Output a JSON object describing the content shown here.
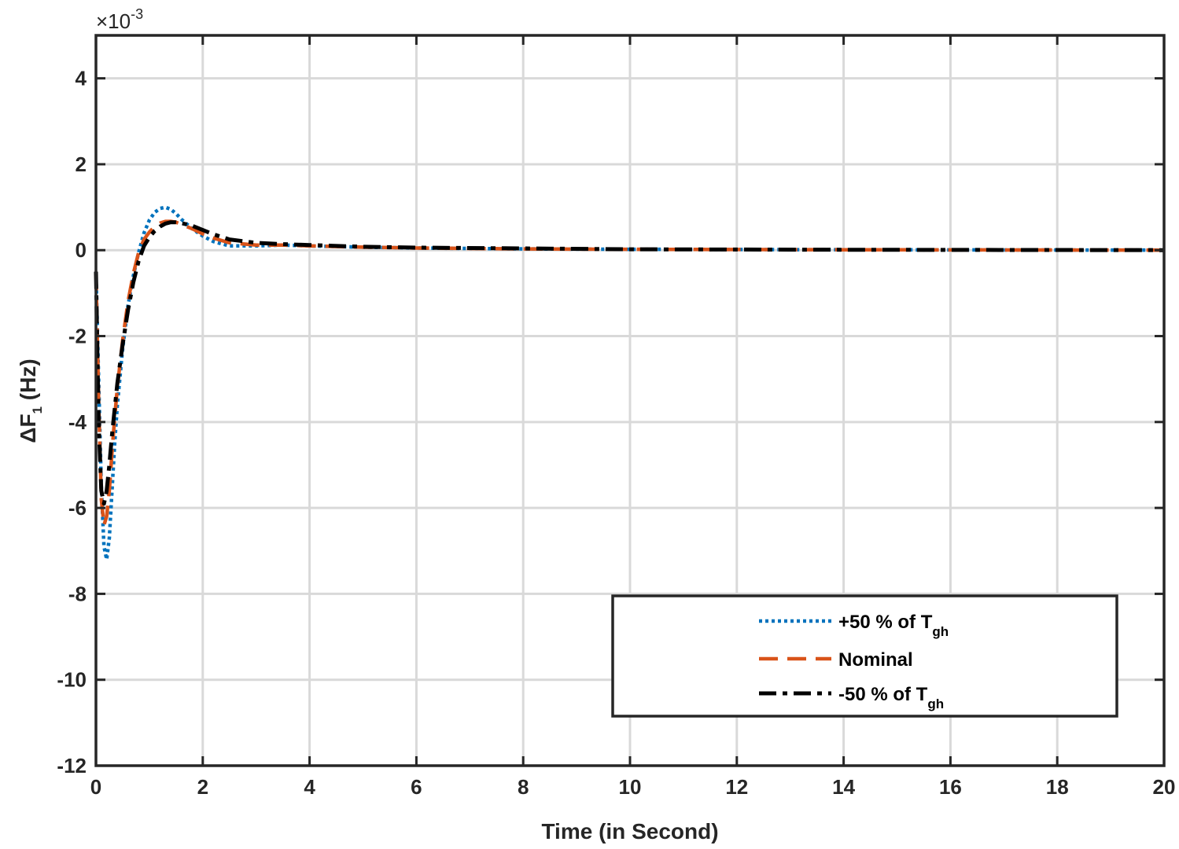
{
  "chart_data": {
    "type": "line",
    "title": "",
    "xlabel": "Time (in Second)",
    "ylabel": {
      "prefix": "ΔF",
      "subscript": "1",
      "suffix": " (Hz)"
    },
    "y_multiplier": {
      "base": "×10",
      "exponent": "-3"
    },
    "xlim": [
      0,
      20
    ],
    "ylim": [
      -12,
      5
    ],
    "x_ticks": [
      0,
      2,
      4,
      6,
      8,
      10,
      12,
      14,
      16,
      18,
      20
    ],
    "x_tick_labels": [
      "0",
      "2",
      "4",
      "6",
      "8",
      "10",
      "12",
      "14",
      "16",
      "18",
      "20"
    ],
    "y_ticks": [
      -12,
      -10,
      -8,
      -6,
      -4,
      -2,
      0,
      2,
      4
    ],
    "y_tick_labels": [
      "-12",
      "-10",
      "-8",
      "-6",
      "-4",
      "-2",
      "0",
      "2",
      "4"
    ],
    "grid": true,
    "legend_position": "bottom-right",
    "series": [
      {
        "name": "+50 % of T",
        "name_subscript": "gh",
        "color": "#0072BD",
        "style": "dotted",
        "x": [
          0,
          0.05,
          0.1,
          0.15,
          0.2,
          0.25,
          0.3,
          0.35,
          0.4,
          0.5,
          0.6,
          0.7,
          0.8,
          0.9,
          1.0,
          1.1,
          1.2,
          1.3,
          1.4,
          1.5,
          1.6,
          1.8,
          2.0,
          2.2,
          2.5,
          3.0,
          3.5,
          4.0,
          5.0,
          6.0,
          8.0,
          10.0,
          14.0,
          20.0
        ],
        "y": [
          -0.5,
          -3.0,
          -5.5,
          -6.9,
          -7.2,
          -6.7,
          -5.6,
          -4.5,
          -3.6,
          -2.3,
          -1.3,
          -0.6,
          -0.05,
          0.4,
          0.7,
          0.88,
          0.97,
          1.0,
          0.95,
          0.85,
          0.72,
          0.5,
          0.33,
          0.2,
          0.1,
          0.1,
          0.12,
          0.1,
          0.07,
          0.05,
          0.03,
          0.02,
          0.01,
          0.0
        ]
      },
      {
        "name": "Nominal",
        "name_subscript": "",
        "color": "#D95319",
        "style": "dashed",
        "x": [
          0,
          0.05,
          0.1,
          0.15,
          0.2,
          0.25,
          0.3,
          0.35,
          0.4,
          0.5,
          0.6,
          0.7,
          0.8,
          0.9,
          1.0,
          1.1,
          1.2,
          1.3,
          1.4,
          1.5,
          1.6,
          1.8,
          2.0,
          2.2,
          2.5,
          3.0,
          3.5,
          4.0,
          5.0,
          6.0,
          8.0,
          10.0,
          14.0,
          20.0
        ],
        "y": [
          -0.5,
          -3.5,
          -5.8,
          -6.4,
          -6.2,
          -5.6,
          -4.7,
          -3.9,
          -3.2,
          -2.1,
          -1.2,
          -0.55,
          -0.05,
          0.25,
          0.42,
          0.55,
          0.63,
          0.67,
          0.67,
          0.65,
          0.6,
          0.5,
          0.38,
          0.28,
          0.17,
          0.12,
          0.12,
          0.1,
          0.07,
          0.05,
          0.03,
          0.02,
          0.01,
          0.0
        ]
      },
      {
        "name": "-50 % of T",
        "name_subscript": "gh",
        "color": "#000000",
        "style": "dashdot",
        "x": [
          0,
          0.05,
          0.1,
          0.15,
          0.2,
          0.25,
          0.3,
          0.35,
          0.4,
          0.5,
          0.6,
          0.7,
          0.8,
          0.9,
          1.0,
          1.1,
          1.2,
          1.3,
          1.4,
          1.5,
          1.6,
          1.8,
          2.0,
          2.2,
          2.5,
          3.0,
          3.5,
          4.0,
          5.0,
          6.0,
          8.0,
          10.0,
          14.0,
          20.0
        ],
        "y": [
          -0.5,
          -4.0,
          -5.6,
          -5.9,
          -5.6,
          -5.0,
          -4.3,
          -3.7,
          -3.1,
          -2.2,
          -1.4,
          -0.75,
          -0.25,
          0.1,
          0.3,
          0.45,
          0.55,
          0.62,
          0.65,
          0.65,
          0.63,
          0.57,
          0.47,
          0.37,
          0.25,
          0.17,
          0.14,
          0.12,
          0.08,
          0.06,
          0.04,
          0.02,
          0.01,
          0.0
        ]
      }
    ]
  }
}
